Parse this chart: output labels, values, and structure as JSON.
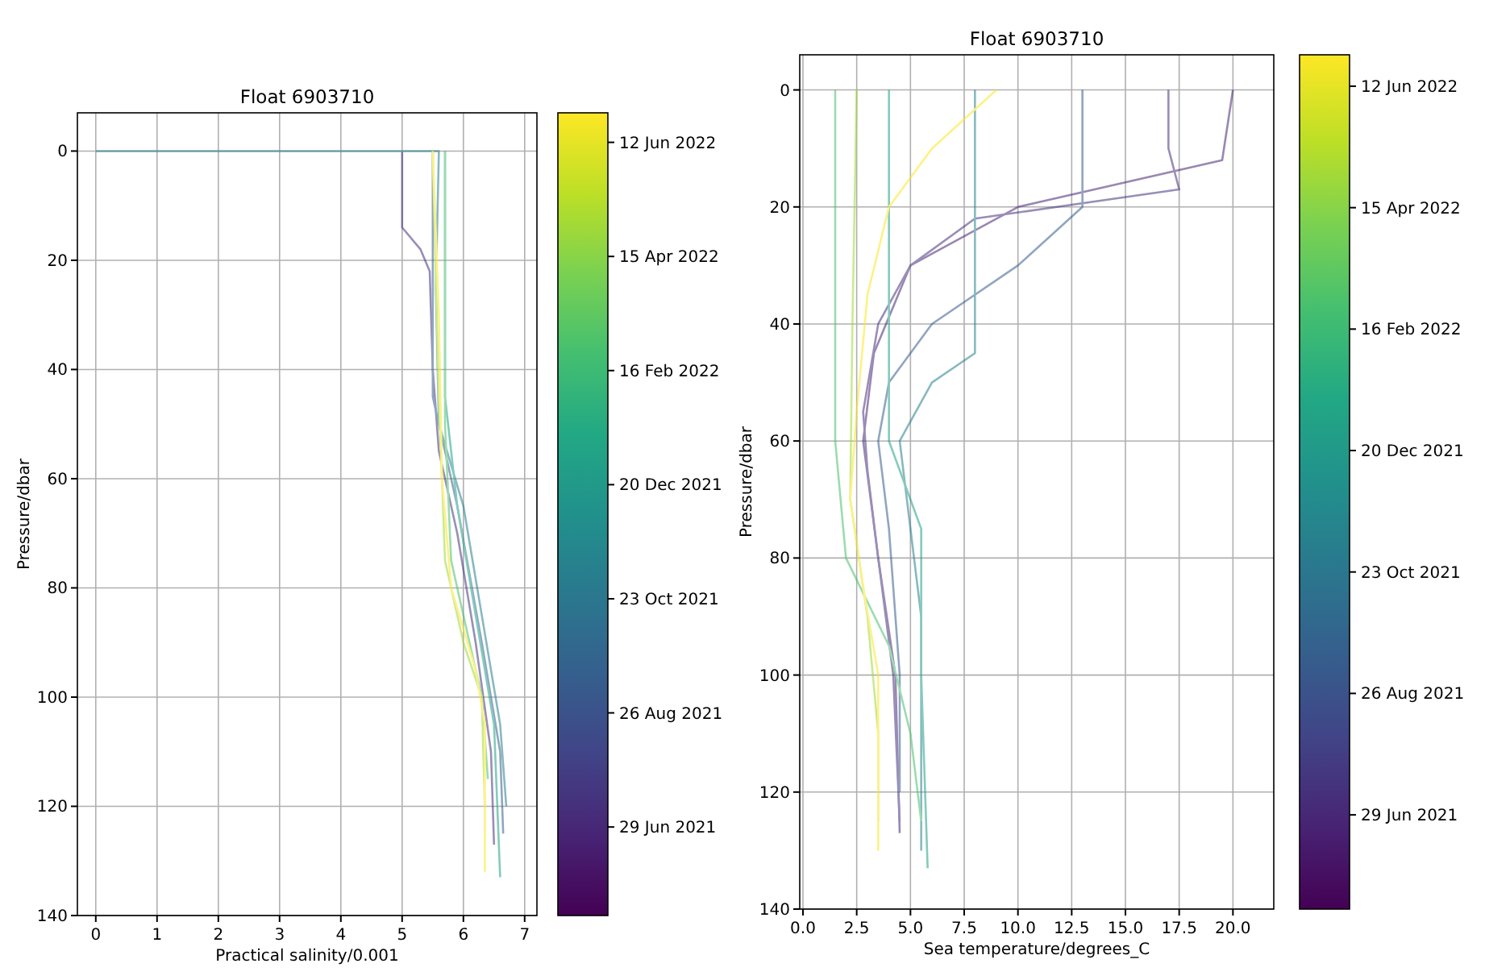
{
  "chart_data": [
    {
      "type": "line",
      "title": "Float 6903710",
      "xlabel": "Practical salinity/0.001",
      "ylabel": "Pressure/dbar",
      "xlim": [
        -0.3,
        7.2
      ],
      "xticks": [
        0,
        1,
        2,
        3,
        4,
        5,
        6,
        7
      ],
      "ylim": [
        140,
        -7
      ],
      "yticks": [
        0,
        20,
        40,
        60,
        80,
        100,
        120,
        140
      ],
      "grid": true,
      "clim": [
        "2021-05-15",
        "2022-06-27"
      ],
      "cticks": [
        {
          "value": "2021-06-29",
          "label": "29 Jun 2021"
        },
        {
          "value": "2021-08-26",
          "label": "26 Aug 2021"
        },
        {
          "value": "2021-10-23",
          "label": "23 Oct 2021"
        },
        {
          "value": "2021-12-20",
          "label": "20 Dec 2021"
        },
        {
          "value": "2022-02-16",
          "label": "16 Feb 2022"
        },
        {
          "value": "2022-04-15",
          "label": "15 Apr 2022"
        },
        {
          "value": "2022-06-12",
          "label": "12 Jun 2022"
        }
      ],
      "series": [
        {
          "color": "#46327e",
          "x": [
            5,
            5,
            5.3,
            5.45,
            5.5,
            5.6,
            5.9,
            6.2,
            6.45,
            6.5
          ],
          "values": [
            0,
            14,
            18,
            22,
            40,
            55,
            70,
            90,
            110,
            127
          ]
        },
        {
          "color": "#365c8d",
          "x": [
            5.5,
            5.5,
            5.5,
            5.9,
            6.3,
            6.6,
            6.65
          ],
          "values": [
            0,
            20,
            45,
            65,
            90,
            110,
            125
          ]
        },
        {
          "color": "#277f8e",
          "x": [
            0,
            5.6,
            5.55,
            5.6,
            6.0,
            6.3,
            6.6,
            6.7
          ],
          "values": [
            0,
            0,
            25,
            50,
            65,
            85,
            105,
            120
          ]
        },
        {
          "color": "#1fa187",
          "x": [
            5.7,
            5.7,
            5.9,
            6.2,
            6.5,
            6.6
          ],
          "values": [
            0,
            45,
            65,
            85,
            105,
            133
          ]
        },
        {
          "color": "#4ac16d",
          "x": [
            5.7,
            5.7,
            5.8,
            6.1,
            6.3,
            6.4
          ],
          "values": [
            0,
            50,
            75,
            90,
            100,
            115
          ]
        },
        {
          "color": "#a0da39",
          "x": [
            5.5,
            5.6,
            5.7,
            6.0,
            6.3,
            6.35
          ],
          "values": [
            0,
            45,
            75,
            90,
            100,
            120
          ]
        },
        {
          "color": "#fde725",
          "x": [
            5.5,
            5.6,
            5.65,
            5.8,
            6.2,
            6.35,
            6.35
          ],
          "values": [
            0,
            30,
            60,
            80,
            95,
            105,
            132
          ]
        }
      ]
    },
    {
      "type": "line",
      "title": "Float 6903710",
      "xlabel": "Sea temperature/degrees_C",
      "ylabel": "Pressure/dbar",
      "xlim": [
        -0.15,
        21.9
      ],
      "xticks": [
        {
          "value": 0,
          "label": "0.0"
        },
        {
          "value": 2.5,
          "label": "2.5"
        },
        {
          "value": 5,
          "label": "5.0"
        },
        {
          "value": 7.5,
          "label": "7.5"
        },
        {
          "value": 10,
          "label": "10.0"
        },
        {
          "value": 12.5,
          "label": "12.5"
        },
        {
          "value": 15,
          "label": "15.0"
        },
        {
          "value": 17.5,
          "label": "17.5"
        },
        {
          "value": 20,
          "label": "20.0"
        }
      ],
      "ylim": [
        140,
        -6
      ],
      "yticks": [
        0,
        20,
        40,
        60,
        80,
        100,
        120,
        140
      ],
      "grid": true,
      "clim": [
        "2021-05-15",
        "2022-06-27"
      ],
      "cticks": [
        {
          "value": "2021-06-29",
          "label": "29 Jun 2021"
        },
        {
          "value": "2021-08-26",
          "label": "26 Aug 2021"
        },
        {
          "value": "2021-10-23",
          "label": "23 Oct 2021"
        },
        {
          "value": "2021-12-20",
          "label": "20 Dec 2021"
        },
        {
          "value": "2022-02-16",
          "label": "16 Feb 2022"
        },
        {
          "value": "2022-04-15",
          "label": "15 Apr 2022"
        },
        {
          "value": "2022-06-12",
          "label": "12 Jun 2022"
        }
      ],
      "series": [
        {
          "color": "#482475",
          "x": [
            20,
            19.5,
            10,
            5,
            3.3,
            2.8,
            3.5,
            4.3,
            4.5
          ],
          "values": [
            0,
            12,
            20,
            30,
            45,
            60,
            80,
            100,
            127
          ]
        },
        {
          "color": "#46327e",
          "x": [
            17,
            17,
            17.5,
            8,
            5,
            3.5,
            2.8,
            3,
            3.5,
            4.2,
            4.5
          ],
          "values": [
            0,
            10,
            17,
            22,
            30,
            40,
            55,
            65,
            80,
            100,
            125
          ]
        },
        {
          "color": "#365c8d",
          "x": [
            13,
            13,
            10,
            6,
            4,
            3.5,
            4,
            4.5,
            4.5
          ],
          "values": [
            0,
            20,
            30,
            40,
            50,
            60,
            75,
            100,
            120
          ]
        },
        {
          "color": "#277f8e",
          "x": [
            8,
            8,
            6,
            4.5,
            5,
            5.5,
            5.5,
            5.5
          ],
          "values": [
            0,
            45,
            50,
            60,
            75,
            90,
            110,
            130
          ]
        },
        {
          "color": "#1fa187",
          "x": [
            4,
            4,
            5.5,
            5.5,
            5.8
          ],
          "values": [
            0,
            60,
            75,
            100,
            133
          ]
        },
        {
          "color": "#4ac16d",
          "x": [
            1.5,
            1.5,
            2,
            4,
            5,
            5.5
          ],
          "values": [
            0,
            60,
            80,
            95,
            110,
            125
          ]
        },
        {
          "color": "#a0da39",
          "x": [
            2.5,
            2.3,
            2.2,
            3,
            3.5,
            3.5
          ],
          "values": [
            0,
            40,
            70,
            90,
            110,
            125
          ]
        },
        {
          "color": "#fde725",
          "x": [
            9,
            6,
            4,
            3,
            2.5,
            2.2,
            2.8,
            3.5,
            3.5
          ],
          "values": [
            0,
            10,
            20,
            35,
            55,
            70,
            85,
            100,
            130
          ]
        }
      ]
    }
  ]
}
